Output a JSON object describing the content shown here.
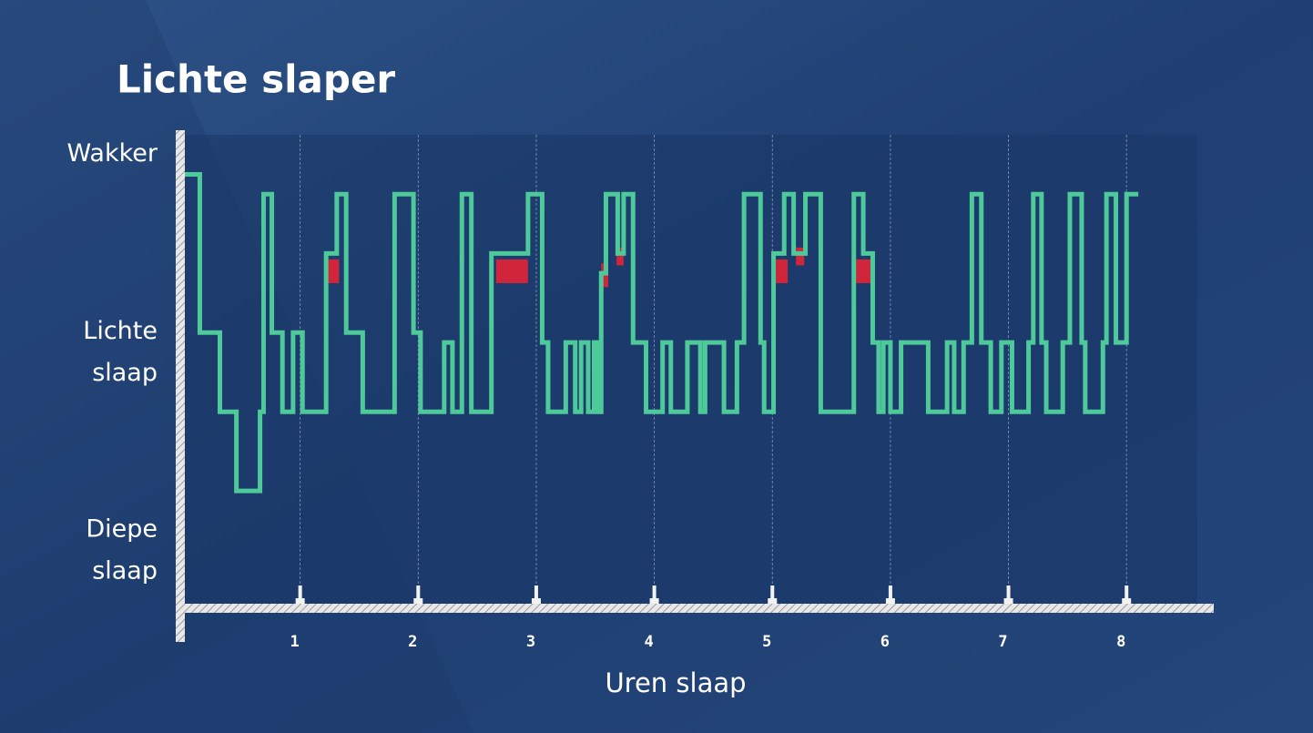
{
  "chart_data": {
    "type": "line",
    "drawstyle": "steps-post",
    "title": "Lichte slaper",
    "xlabel": "Uren slaap",
    "xlim": [
      0,
      8.6
    ],
    "xticks": [
      1,
      2,
      3,
      4,
      5,
      6,
      7,
      8
    ],
    "ylim": [
      -0.27,
      2.1
    ],
    "yticks": [
      {
        "value": 2,
        "label": "Wakker"
      },
      {
        "value": 1,
        "label": "Lichte slaap"
      },
      {
        "value": 0,
        "label": "Diepe slaap"
      }
    ],
    "grid": true,
    "series": [
      {
        "color": "#4ec99a",
        "x": [
          0.02,
          0.15,
          0.32,
          0.46,
          0.66,
          0.69,
          0.76,
          0.85,
          0.94,
          1.02,
          1.22,
          1.31,
          1.39,
          1.53,
          1.8,
          1.96,
          2.02,
          2.22,
          2.29,
          2.37,
          2.45,
          2.62,
          2.93,
          3.05,
          3.1,
          3.25,
          3.33,
          3.38,
          3.44,
          3.49,
          3.52,
          3.55,
          3.59,
          3.69,
          3.74,
          3.82,
          3.93,
          4.07,
          4.14,
          4.28,
          4.39,
          4.43,
          4.59,
          4.7,
          4.76,
          4.9,
          4.93,
          5.01,
          5.1,
          5.18,
          5.28,
          5.41,
          5.69,
          5.77,
          5.85,
          5.9,
          5.94,
          6.0,
          6.09,
          6.32,
          6.48,
          6.54,
          6.62,
          6.69,
          6.77,
          6.85,
          6.94,
          7.03,
          7.17,
          7.21,
          7.28,
          7.32,
          7.46,
          7.52,
          7.62,
          7.65,
          7.8,
          7.83,
          7.91,
          8.0,
          8.1
        ],
        "values": [
          1.9,
          1.1,
          0.7,
          0.3,
          0.7,
          1.8,
          1.1,
          0.7,
          1.1,
          0.7,
          1.5,
          1.8,
          1.1,
          0.7,
          1.8,
          1.1,
          0.7,
          1.05,
          0.7,
          1.8,
          0.7,
          1.5,
          1.8,
          1.05,
          0.7,
          1.05,
          0.7,
          1.05,
          0.7,
          1.05,
          0.7,
          1.4,
          1.8,
          1.5,
          1.8,
          1.05,
          0.7,
          1.05,
          0.7,
          1.05,
          0.7,
          1.05,
          0.7,
          1.05,
          1.8,
          1.05,
          0.7,
          1.5,
          1.8,
          1.5,
          1.8,
          0.7,
          1.8,
          1.5,
          1.05,
          0.7,
          1.05,
          0.7,
          1.05,
          0.7,
          1.05,
          0.7,
          1.05,
          1.8,
          1.05,
          0.7,
          1.05,
          0.7,
          1.05,
          1.8,
          1.05,
          0.7,
          1.05,
          1.8,
          1.05,
          0.7,
          1.05,
          1.8,
          1.05,
          1.8,
          1.8
        ]
      }
    ],
    "highlights": {
      "color": "#d0253a",
      "x0": [
        1.23,
        2.66,
        3.55,
        3.68,
        5.03,
        5.2,
        5.71
      ],
      "x1": [
        1.33,
        2.93,
        3.61,
        3.74,
        5.13,
        5.27,
        5.84
      ],
      "y0": [
        1.35,
        1.35,
        1.33,
        1.44,
        1.35,
        1.44,
        1.35
      ],
      "y1": [
        1.47,
        1.47,
        1.45,
        1.53,
        1.47,
        1.53,
        1.47
      ]
    }
  }
}
